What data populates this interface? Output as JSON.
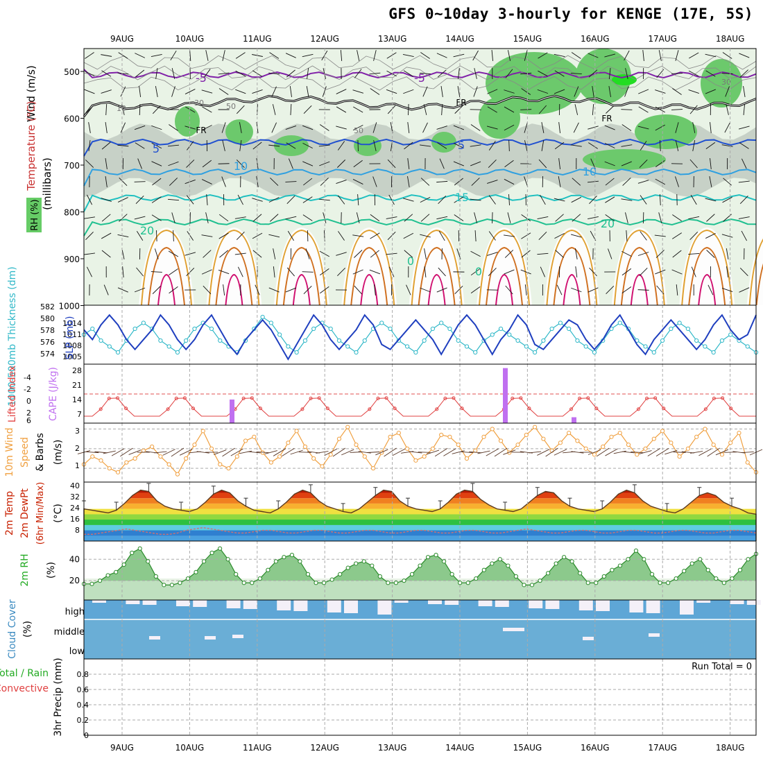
{
  "title": "GFS 0~10day 3-hourly for KENGE (17E, 5S)",
  "dates": [
    "9AUG",
    "10AUG",
    "11AUG",
    "12AUG",
    "13AUG",
    "14AUG",
    "15AUG",
    "16AUG",
    "17AUG",
    "18AUG"
  ],
  "run_total": "Run Total = 0",
  "panels": {
    "upper": {
      "ylabel_wind": "Wind (m/s)",
      "ylabel_temp": "Temperature (°C)",
      "ylabel_rh": "RH (%)",
      "ylabel_units": "(millibars)",
      "yticks": [
        "500",
        "600",
        "700",
        "800",
        "900",
        "1000"
      ],
      "contour_labels": [
        "-5",
        "-5",
        "FR",
        "FR",
        "FR",
        "5",
        "5",
        "10",
        "10",
        "15",
        "20",
        "20",
        "30",
        "30",
        "50",
        "50",
        "10",
        "0",
        "0"
      ]
    },
    "slp": {
      "ylabel_left": "1000-500mb Thickness (dm)",
      "ylabel_right": "SLP (mb)",
      "yticks_left": [
        "582",
        "580",
        "578",
        "576",
        "574"
      ],
      "yticks_right": [
        "1014",
        "1011",
        "1008",
        "1005"
      ]
    },
    "cape": {
      "ylabel_left": "Lifted Index",
      "ylabel_right": "CAPE (J/kg)",
      "yticks_left": [
        "-4",
        "-2",
        "0",
        "2",
        "6"
      ],
      "yticks_right": [
        "28",
        "21",
        "14",
        "7"
      ]
    },
    "wind10m": {
      "ylabel1": "10m Wind",
      "ylabel2": "Speed",
      "ylabel3": "& Barbs",
      "ylabel_units": "(m/s)",
      "yticks": [
        "3",
        "2",
        "1"
      ]
    },
    "temp2m": {
      "ylabel1": "2m Temp",
      "ylabel2": "2m DewPt",
      "ylabel3": "(6hr Min/Max)",
      "ylabel_units": "(°C)",
      "yticks": [
        "40",
        "32",
        "24",
        "16",
        "8"
      ]
    },
    "rh2m": {
      "ylabel": "2m RH",
      "ylabel_units": "(%)",
      "yticks": [
        "40",
        "20"
      ]
    },
    "cloud": {
      "ylabel": "Cloud Cover",
      "ylabel_units": "(%)",
      "levels": [
        "high",
        "middle",
        "low"
      ]
    },
    "precip": {
      "ylabel1": "Total / Rain",
      "ylabel2": "Convective",
      "ylabel3": "3hr Precip (mm)",
      "yticks": [
        "0.8",
        "0.6",
        "0.4",
        "0.2",
        "0"
      ]
    }
  },
  "colors": {
    "axis": "#000000",
    "grid": "#999999",
    "dashed_ref": "#e05050",
    "slp_line": "#1f3fbf",
    "thickness_line": "#30b8c8",
    "lifted_index": "#e04040",
    "cape_bar": "#c070f0",
    "wind_line": "#f0a040",
    "temp_fill_top": "#c82000",
    "rh_fill": "#7fbf7f",
    "cloud_blue": "#6aaed6",
    "precip_label": "#22aa22"
  },
  "chart_data": [
    {
      "type": "line",
      "panel": "slp",
      "series": [
        {
          "name": "SLP (mb)",
          "values": [
            1010,
            1008,
            1011,
            1013,
            1011,
            1008,
            1006,
            1008,
            1010,
            1013,
            1011,
            1008,
            1006,
            1008,
            1011,
            1013,
            1010,
            1007,
            1005,
            1008,
            1010,
            1012,
            1010,
            1007,
            1004,
            1007,
            1010,
            1013,
            1011,
            1008,
            1006,
            1008,
            1010,
            1013,
            1011,
            1007,
            1006,
            1008,
            1010,
            1012,
            1010,
            1008,
            1005,
            1008,
            1011,
            1013,
            1011,
            1008,
            1005,
            1008,
            1010,
            1013,
            1011,
            1007,
            1006,
            1008,
            1010,
            1012,
            1011,
            1008,
            1006,
            1008,
            1011,
            1013,
            1010,
            1007,
            1005,
            1008,
            1010,
            1012,
            1010,
            1008,
            1006,
            1008,
            1011,
            1013,
            1010,
            1008,
            1009,
            1013
          ]
        },
        {
          "name": "1000-500mb Thickness (dm)",
          "values": [
            578,
            579,
            577,
            576,
            575,
            577,
            579,
            580,
            579,
            577,
            576,
            575,
            577,
            579,
            580,
            579,
            577,
            576,
            575,
            577,
            579,
            581,
            580,
            578,
            576,
            575,
            577,
            579,
            580,
            579,
            577,
            576,
            575,
            577,
            579,
            580,
            579,
            577,
            576,
            575,
            577,
            579,
            580,
            579,
            577,
            576,
            575,
            577,
            578,
            579,
            578,
            577,
            576,
            575,
            577,
            579,
            580,
            579,
            577,
            576,
            575,
            577,
            579,
            580,
            579,
            577,
            576,
            575,
            577,
            579,
            580,
            579,
            577,
            576,
            575,
            577,
            578,
            577,
            576,
            575
          ]
        }
      ]
    },
    {
      "type": "bar",
      "panel": "cape",
      "categories": [
        "10AUG 15Z",
        "14AUG 15Z",
        "15AUG 15Z"
      ],
      "values": [
        12,
        28,
        3
      ],
      "series_name": "CAPE (J/kg)"
    },
    {
      "type": "line",
      "panel": "wind10m",
      "series": [
        {
          "name": "Speed (m/s)",
          "values": [
            1.2,
            1.6,
            1.4,
            1.0,
            0.8,
            1.3,
            1.5,
            1.9,
            2.1,
            1.6,
            1.2,
            0.7,
            1.5,
            2.2,
            2.9,
            2.0,
            1.2,
            1.0,
            1.6,
            2.4,
            2.6,
            1.8,
            1.3,
            1.6,
            2.3,
            2.9,
            2.1,
            1.5,
            1.1,
            1.7,
            2.5,
            3.1,
            2.2,
            1.6,
            1.0,
            1.8,
            2.6,
            2.8,
            2.0,
            1.4,
            1.6,
            2.0,
            2.7,
            2.6,
            2.2,
            1.5,
            1.9,
            2.6,
            3.0,
            2.4,
            1.8,
            2.2,
            2.7,
            3.1,
            2.5,
            1.9,
            2.3,
            2.8,
            2.4,
            2.0,
            1.7,
            2.1,
            2.6,
            2.8,
            2.2,
            1.7,
            2.0,
            2.5,
            2.9,
            2.3,
            1.6,
            2.0,
            2.6,
            3.0,
            2.2,
            1.7,
            2.3,
            2.8,
            1.3,
            0.8
          ]
        }
      ]
    },
    {
      "type": "area",
      "panel": "temp2m",
      "series": [
        {
          "name": "2m Temp (°C)",
          "values": [
            24,
            23,
            22,
            21,
            23,
            28,
            34,
            38,
            37,
            30,
            26,
            24,
            23,
            22,
            24,
            29,
            35,
            38,
            36,
            30,
            26,
            23,
            22,
            21,
            24,
            29,
            35,
            38,
            36,
            30,
            26,
            24,
            22,
            21,
            24,
            29,
            34,
            38,
            37,
            30,
            26,
            24,
            23,
            22,
            24,
            29,
            35,
            38,
            37,
            31,
            27,
            24,
            23,
            22,
            24,
            29,
            34,
            37,
            36,
            30,
            26,
            24,
            23,
            22,
            24,
            29,
            35,
            38,
            36,
            30,
            26,
            24,
            22,
            21,
            24,
            29,
            34,
            36,
            34,
            29,
            26,
            24,
            21,
            20
          ]
        },
        {
          "name": "2m DewPt (°C)",
          "values": [
            5,
            5,
            6,
            7,
            8,
            9,
            8,
            7,
            6,
            5,
            5,
            6,
            8,
            9,
            10,
            9,
            8,
            7,
            6,
            6,
            7,
            8,
            8,
            7,
            6,
            6,
            7,
            8,
            8,
            7,
            6,
            6,
            7,
            8,
            8,
            7,
            6,
            6,
            7,
            8,
            8,
            7,
            6,
            6,
            7,
            8,
            8,
            7,
            6,
            6,
            7,
            8,
            9,
            8,
            7,
            6,
            6,
            7,
            8,
            8,
            7,
            6,
            6,
            7,
            8,
            8,
            7,
            6,
            6,
            7,
            8,
            8,
            7,
            6,
            6,
            7,
            8,
            8,
            7,
            6
          ]
        }
      ],
      "ylim": [
        0,
        40
      ]
    },
    {
      "type": "area",
      "panel": "rh2m",
      "series": [
        {
          "name": "2m RH (%)",
          "values": [
            17,
            17,
            20,
            25,
            28,
            35,
            46,
            50,
            38,
            24,
            16,
            16,
            18,
            22,
            28,
            38,
            46,
            50,
            40,
            26,
            18,
            18,
            22,
            30,
            38,
            42,
            44,
            38,
            26,
            18,
            18,
            21,
            26,
            32,
            36,
            38,
            34,
            24,
            18,
            18,
            20,
            26,
            34,
            42,
            44,
            38,
            26,
            18,
            18,
            22,
            30,
            36,
            40,
            34,
            24,
            16,
            16,
            20,
            27,
            36,
            42,
            38,
            27,
            18,
            18,
            24,
            30,
            34,
            40,
            48,
            40,
            26,
            18,
            18,
            22,
            29,
            36,
            40,
            30,
            22,
            18,
            22,
            30,
            40,
            45
          ]
        }
      ],
      "ylim": [
        0,
        55
      ]
    }
  ]
}
